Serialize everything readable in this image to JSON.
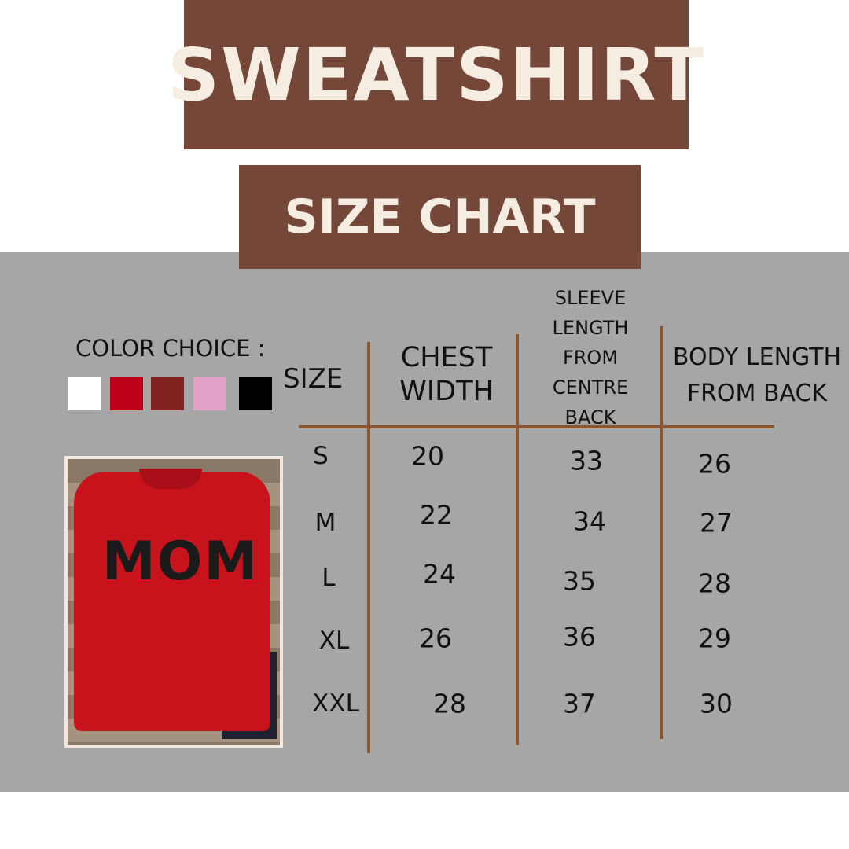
{
  "title": "SWEATSHIRT",
  "subtitle": "SIZE CHART",
  "color_choice": {
    "label": "COLOR CHOICE :",
    "swatches": [
      "#ffffff",
      "#bf0019",
      "#822321",
      "#e3a2c8",
      "#000000"
    ]
  },
  "photo": {
    "print_text": "MOM",
    "shirt_color": "#c8121c"
  },
  "table": {
    "headers": {
      "size": "SIZE",
      "chest": [
        "CHEST",
        "WIDTH"
      ],
      "sleeve": [
        "SLEEVE",
        "LENGTH",
        "FROM",
        "CENTRE",
        "BACK"
      ],
      "body": [
        "BODY LENGTH",
        "FROM BACK"
      ]
    },
    "rows": [
      {
        "size": "S",
        "chest": "20",
        "sleeve": "33",
        "body": "26"
      },
      {
        "size": "M",
        "chest": "22",
        "sleeve": "34",
        "body": "27"
      },
      {
        "size": "L",
        "chest": "24",
        "sleeve": "35",
        "body": "28"
      },
      {
        "size": "XL",
        "chest": "26",
        "sleeve": "36",
        "body": "29"
      },
      {
        "size": "XXL",
        "chest": "28",
        "sleeve": "37",
        "body": "30"
      }
    ]
  }
}
